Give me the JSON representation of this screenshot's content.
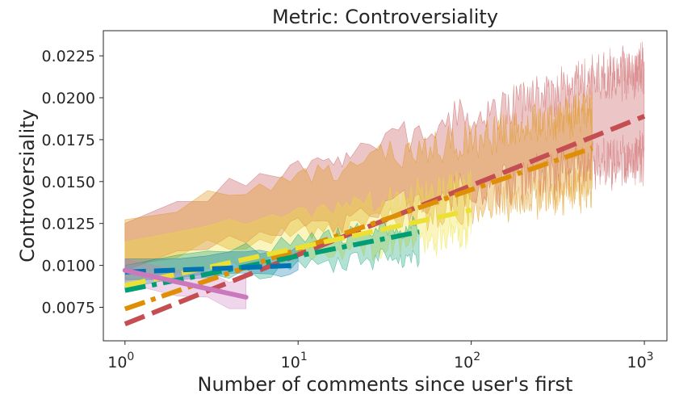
{
  "chart_data": {
    "type": "line",
    "title": "Metric: Controversiality",
    "xlabel": "Number of comments since user's first",
    "ylabel": "Controversiality",
    "xscale": "log",
    "xlim": [
      0.75,
      1350
    ],
    "ylim": [
      0.0055,
      0.024
    ],
    "x_ticks": [
      {
        "value": 1,
        "base": "10",
        "exp": "0"
      },
      {
        "value": 10,
        "base": "10",
        "exp": "1"
      },
      {
        "value": 100,
        "base": "10",
        "exp": "2"
      },
      {
        "value": 1000,
        "base": "10",
        "exp": "3"
      }
    ],
    "y_ticks": [
      {
        "value": 0.0075,
        "label": "0.0075"
      },
      {
        "value": 0.01,
        "label": "0.0100"
      },
      {
        "value": 0.0125,
        "label": "0.0125"
      },
      {
        "value": 0.015,
        "label": "0.0150"
      },
      {
        "value": 0.0175,
        "label": "0.0175"
      },
      {
        "value": 0.02,
        "label": "0.0200"
      },
      {
        "value": 0.0225,
        "label": "0.0225"
      }
    ],
    "grid": false,
    "legend": "none",
    "confidence_bands": [
      {
        "name": "band-group-1000",
        "color": "#c44e52",
        "opacity": 0.32,
        "x_end": 1000,
        "seed": 7,
        "lo_start": 0.01,
        "lo_end": 0.017,
        "hi_start": 0.0125,
        "hi_end": 0.0215,
        "noise": 0.0009
      },
      {
        "name": "band-group-500",
        "color": "#de8f05",
        "opacity": 0.32,
        "x_end": 500,
        "seed": 13,
        "lo_start": 0.0103,
        "lo_end": 0.015,
        "hi_start": 0.0128,
        "hi_end": 0.0188,
        "noise": 0.0008
      },
      {
        "name": "band-group-100",
        "color": "#ece133",
        "opacity": 0.32,
        "x_end": 100,
        "seed": 21,
        "lo_start": 0.0092,
        "lo_end": 0.0122,
        "hi_start": 0.0115,
        "hi_end": 0.0145,
        "noise": 0.0006
      },
      {
        "name": "band-group-50",
        "color": "#029e73",
        "opacity": 0.3,
        "x_end": 50,
        "seed": 29,
        "lo_start": 0.0088,
        "lo_end": 0.0108,
        "hi_start": 0.01,
        "hi_end": 0.0122,
        "noise": 0.0004
      },
      {
        "name": "band-group-10",
        "color": "#0173b2",
        "opacity": 0.3,
        "x_end": 10,
        "seed": 37,
        "lo_start": 0.0092,
        "lo_end": 0.0096,
        "hi_start": 0.0104,
        "hi_end": 0.0108,
        "noise": 0.0002
      },
      {
        "name": "band-group-5",
        "color": "#cc78bc",
        "opacity": 0.3,
        "x_end": 5,
        "seed": 43,
        "lo_start": 0.009,
        "lo_end": 0.0075,
        "hi_start": 0.0104,
        "hi_end": 0.009,
        "noise": 0.0002
      }
    ],
    "series": [
      {
        "name": "fit-group-1000",
        "color": "#c44e52",
        "dash": "dashed",
        "x": [
          1,
          1000
        ],
        "y": [
          0.0065,
          0.0189
        ]
      },
      {
        "name": "fit-group-500",
        "color": "#de8f05",
        "dash": "dashdot",
        "x": [
          1,
          500
        ],
        "y": [
          0.0074,
          0.017
        ]
      },
      {
        "name": "fit-group-100",
        "color": "#ece133",
        "dash": "dashed",
        "x": [
          1,
          100
        ],
        "y": [
          0.0088,
          0.0133
        ]
      },
      {
        "name": "fit-group-50",
        "color": "#029e73",
        "dash": "dashdot",
        "x": [
          1,
          50
        ],
        "y": [
          0.0085,
          0.012
        ]
      },
      {
        "name": "fit-group-10",
        "color": "#0173b2",
        "dash": "dashed",
        "x": [
          1,
          10
        ],
        "y": [
          0.0096,
          0.01
        ]
      },
      {
        "name": "fit-group-5",
        "color": "#cc78bc",
        "dash": "solid",
        "x": [
          1,
          5
        ],
        "y": [
          0.0097,
          0.0081
        ]
      }
    ]
  }
}
